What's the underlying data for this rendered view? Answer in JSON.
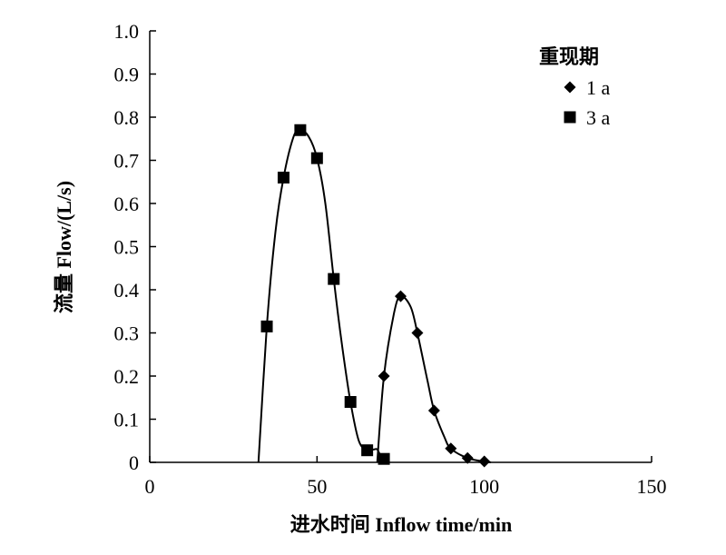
{
  "chart_data": {
    "type": "scatter",
    "xlabel": "进水时间 Inflow time/min",
    "ylabel": "流量 Flow/(L/s)",
    "xlim": [
      0,
      150
    ],
    "ylim": [
      0,
      1.0
    ],
    "x_ticks": [
      "0",
      "50",
      "100",
      "150"
    ],
    "y_ticks": [
      "0",
      "0.1",
      "0.2",
      "0.3",
      "0.4",
      "0.5",
      "0.6",
      "0.7",
      "0.8",
      "0.9",
      "1.0"
    ],
    "grid": false,
    "legend": {
      "title": "重现期",
      "placement": "top-right"
    },
    "series": [
      {
        "name": "1 a",
        "marker": "diamond",
        "color": "#000000",
        "points": [
          [
            70,
            0.2
          ],
          [
            75,
            0.385
          ],
          [
            80,
            0.3
          ],
          [
            85,
            0.12
          ],
          [
            90,
            0.032
          ],
          [
            95,
            0.01
          ],
          [
            100,
            0.002
          ]
        ],
        "curve": [
          [
            68,
            0.0
          ],
          [
            70,
            0.2
          ],
          [
            73,
            0.345
          ],
          [
            75,
            0.385
          ],
          [
            78,
            0.36
          ],
          [
            80,
            0.3
          ],
          [
            83,
            0.19
          ],
          [
            85,
            0.12
          ],
          [
            88,
            0.06
          ],
          [
            90,
            0.032
          ],
          [
            95,
            0.01
          ],
          [
            100,
            0.002
          ],
          [
            102,
            0.0
          ]
        ]
      },
      {
        "name": "3 a",
        "marker": "square",
        "color": "#000000",
        "points": [
          [
            35,
            0.315
          ],
          [
            40,
            0.66
          ],
          [
            45,
            0.77
          ],
          [
            50,
            0.705
          ],
          [
            55,
            0.425
          ],
          [
            60,
            0.14
          ],
          [
            65,
            0.028
          ],
          [
            70,
            0.008
          ]
        ],
        "curve": [
          [
            32.5,
            0.0
          ],
          [
            35,
            0.315
          ],
          [
            37.5,
            0.53
          ],
          [
            40,
            0.66
          ],
          [
            43,
            0.755
          ],
          [
            45,
            0.77
          ],
          [
            47.5,
            0.755
          ],
          [
            50,
            0.705
          ],
          [
            52.5,
            0.6
          ],
          [
            55,
            0.425
          ],
          [
            57.5,
            0.27
          ],
          [
            60,
            0.14
          ],
          [
            62.5,
            0.05
          ],
          [
            65,
            0.028
          ],
          [
            67,
            0.03
          ],
          [
            68,
            0.03
          ],
          [
            69,
            0.015
          ],
          [
            70,
            0.008
          ],
          [
            71,
            0.0
          ]
        ]
      }
    ]
  }
}
